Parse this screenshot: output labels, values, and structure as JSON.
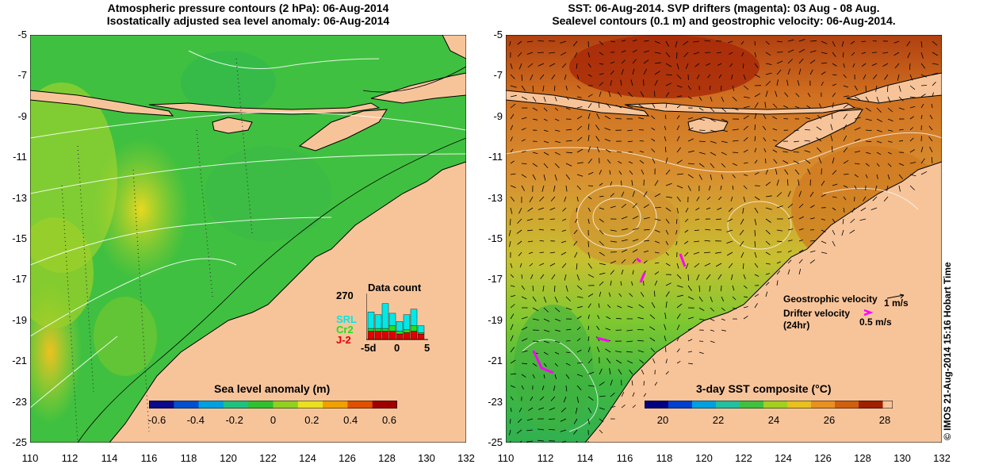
{
  "left_panel": {
    "title_line1": "Atmospheric pressure contours (2 hPa): 06-Aug-2014",
    "title_line2": "Isostatically adjusted sea level anomaly: 06-Aug-2014",
    "colorbar_title": "Sea level anomaly (m)",
    "colorbar_ticks": [
      "-0.6",
      "-0.4",
      "-0.2",
      "0",
      "0.2",
      "0.4",
      "0.6"
    ],
    "colorbar_colors": [
      "#0a0a8c",
      "#0050d0",
      "#00a0e0",
      "#20c080",
      "#30c030",
      "#90d020",
      "#e8e020",
      "#f0a000",
      "#e05000",
      "#a00000"
    ],
    "data_count": {
      "title": "Data count",
      "max_label": "270",
      "x_ticks": [
        "-5d",
        "0",
        "5"
      ],
      "legend": [
        {
          "label": "SRL",
          "color": "#00e8e8"
        },
        {
          "label": "Cr2",
          "color": "#20e020"
        },
        {
          "label": "J-2",
          "color": "#e00000"
        }
      ],
      "bars": [
        {
          "srl": 0.6,
          "cr2": 0.1,
          "j2": 0.3
        },
        {
          "srl": 0.5,
          "cr2": 0.1,
          "j2": 0.3
        },
        {
          "srl": 0.9,
          "cr2": 0.1,
          "j2": 0.3
        },
        {
          "srl": 0.45,
          "cr2": 0.2,
          "j2": 0.3
        },
        {
          "srl": 0.35,
          "cr2": 0.1,
          "j2": 0.2
        },
        {
          "srl": 0.55,
          "cr2": 0.1,
          "j2": 0.25
        },
        {
          "srl": 0.6,
          "cr2": 0.2,
          "j2": 0.3
        },
        {
          "srl": 0.25,
          "cr2": 0.05,
          "j2": 0.2
        }
      ]
    }
  },
  "right_panel": {
    "title_line1": "SST: 06-Aug-2014. SVP drifters (magenta): 03 Aug - 08 Aug.",
    "title_line2": "Sealevel contours (0.1 m) and geostrophic velocity: 06-Aug-2014.",
    "colorbar_title": "3-day SST composite (°C)",
    "colorbar_ticks": [
      "20",
      "22",
      "24",
      "26",
      "28"
    ],
    "colorbar_colors": [
      "#000080",
      "#0040d0",
      "#00a0e0",
      "#20c0a0",
      "#40c040",
      "#a0d020",
      "#e8c020",
      "#e89020",
      "#d06010",
      "#a02000"
    ],
    "geostrophic_label": "Geostrophic velocity",
    "geostrophic_scale": "1 m/s",
    "drifter_label_line1": "Drifter velocity",
    "drifter_label_line2": "(24hr)",
    "drifter_scale": "0.5 m/s",
    "drifter_color": "#ff00ff"
  },
  "axes": {
    "y_ticks": [
      "-5",
      "-7",
      "-9",
      "-11",
      "-13",
      "-15",
      "-17",
      "-19",
      "-21",
      "-23",
      "-25"
    ],
    "x_ticks": [
      "110",
      "112",
      "114",
      "116",
      "118",
      "120",
      "122",
      "124",
      "126",
      "128",
      "130",
      "132"
    ]
  },
  "colors": {
    "land": "#f7c49a",
    "coast": "#000000",
    "contour": "#ffffff"
  },
  "copyright": "© IMOS 21-Aug-2014 15:16 Hobart Time"
}
